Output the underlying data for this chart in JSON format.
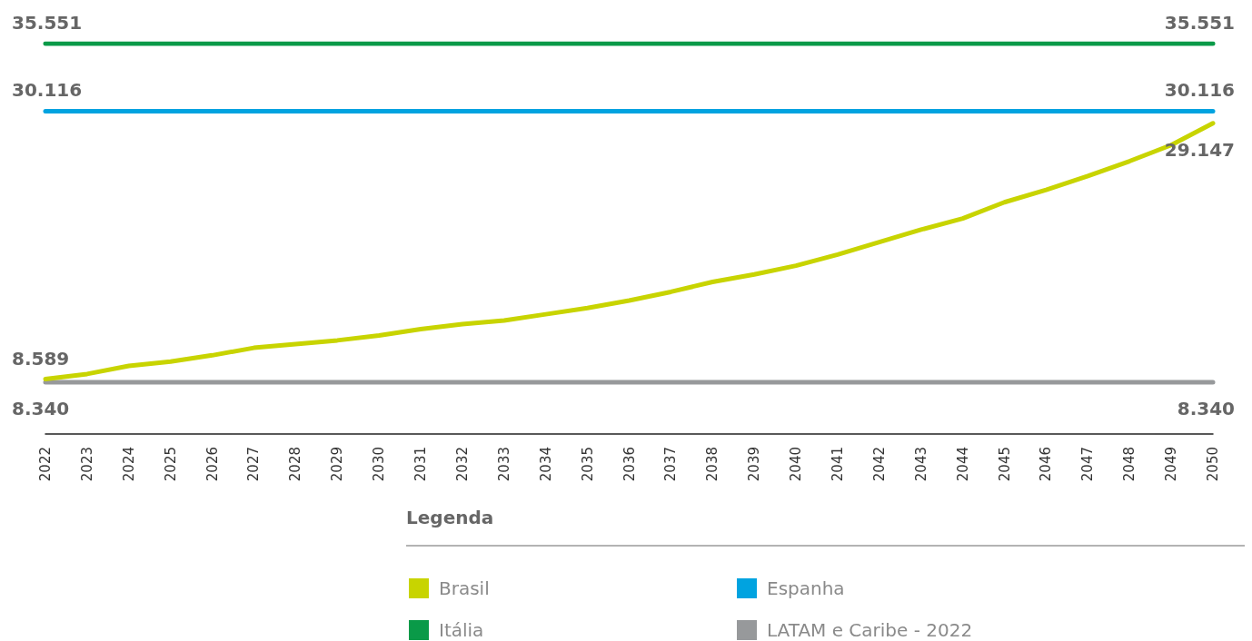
{
  "chart_data": {
    "type": "line",
    "legend_title": "Legenda",
    "legend": "bottom",
    "grid": false,
    "marker": "none",
    "categories": [
      "2022",
      "2023",
      "2024",
      "2025",
      "2026",
      "2027",
      "2028",
      "2029",
      "2030",
      "2031",
      "2032",
      "2033",
      "2034",
      "2035",
      "2036",
      "2037",
      "2038",
      "2039",
      "2040",
      "2041",
      "2042",
      "2043",
      "2044",
      "2045",
      "2046",
      "2047",
      "2048",
      "2049",
      "2050"
    ],
    "series": [
      {
        "name": "Brasil",
        "color": "#c8d400",
        "values": [
          8.589,
          9.0,
          9.65,
          10.0,
          10.5,
          11.1,
          11.4,
          11.7,
          12.1,
          12.6,
          13.0,
          13.3,
          13.8,
          14.3,
          14.9,
          15.6,
          16.4,
          17.0,
          17.7,
          18.6,
          19.6,
          20.6,
          21.5,
          22.8,
          23.8,
          24.9,
          26.1,
          27.4,
          29.147
        ],
        "value_labels": [
          "8.589",
          null,
          null,
          null,
          null,
          null,
          null,
          null,
          null,
          null,
          null,
          null,
          null,
          null,
          null,
          null,
          null,
          null,
          null,
          null,
          null,
          null,
          null,
          null,
          null,
          null,
          null,
          null,
          "29.147"
        ]
      },
      {
        "name": "Espanha",
        "color": "#00a3e0",
        "values": [
          30.116,
          30.116,
          30.116,
          30.116,
          30.116,
          30.116,
          30.116,
          30.116,
          30.116,
          30.116,
          30.116,
          30.116,
          30.116,
          30.116,
          30.116,
          30.116,
          30.116,
          30.116,
          30.116,
          30.116,
          30.116,
          30.116,
          30.116,
          30.116,
          30.116,
          30.116,
          30.116,
          30.116,
          30.116
        ],
        "value_labels": [
          "30.116",
          null,
          null,
          null,
          null,
          null,
          null,
          null,
          null,
          null,
          null,
          null,
          null,
          null,
          null,
          null,
          null,
          null,
          null,
          null,
          null,
          null,
          null,
          null,
          null,
          null,
          null,
          null,
          "30.116"
        ]
      },
      {
        "name": "Itália",
        "color": "#0a9a48",
        "values": [
          35.551,
          35.551,
          35.551,
          35.551,
          35.551,
          35.551,
          35.551,
          35.551,
          35.551,
          35.551,
          35.551,
          35.551,
          35.551,
          35.551,
          35.551,
          35.551,
          35.551,
          35.551,
          35.551,
          35.551,
          35.551,
          35.551,
          35.551,
          35.551,
          35.551,
          35.551,
          35.551,
          35.551,
          35.551
        ],
        "value_labels": [
          "35.551",
          null,
          null,
          null,
          null,
          null,
          null,
          null,
          null,
          null,
          null,
          null,
          null,
          null,
          null,
          null,
          null,
          null,
          null,
          null,
          null,
          null,
          null,
          null,
          null,
          null,
          null,
          null,
          "35.551"
        ]
      },
      {
        "name": "LATAM e Caribe - 2022",
        "color": "#97999b",
        "values": [
          8.34,
          8.34,
          8.34,
          8.34,
          8.34,
          8.34,
          8.34,
          8.34,
          8.34,
          8.34,
          8.34,
          8.34,
          8.34,
          8.34,
          8.34,
          8.34,
          8.34,
          8.34,
          8.34,
          8.34,
          8.34,
          8.34,
          8.34,
          8.34,
          8.34,
          8.34,
          8.34,
          8.34,
          8.34
        ],
        "value_labels": [
          "8.340",
          null,
          null,
          null,
          null,
          null,
          null,
          null,
          null,
          null,
          null,
          null,
          null,
          null,
          null,
          null,
          null,
          null,
          null,
          null,
          null,
          null,
          null,
          null,
          null,
          null,
          null,
          null,
          "8.340"
        ]
      }
    ]
  }
}
